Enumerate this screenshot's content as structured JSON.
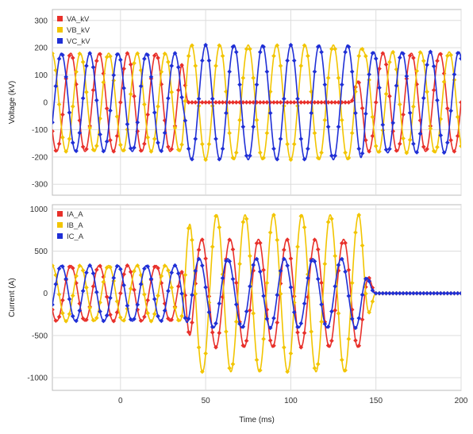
{
  "chart_data": [
    {
      "type": "line",
      "ylabel": "Voltage (kV)",
      "xlabel": "",
      "xlim": [
        -40,
        200
      ],
      "ylim": [
        -340,
        340
      ],
      "x_ticks": [
        0,
        50,
        100,
        150,
        200
      ],
      "y_ticks": [
        -300,
        -200,
        -100,
        0,
        100,
        200,
        300
      ],
      "show_x_tick_labels": false,
      "grid": true,
      "legend_position": "top-left",
      "marker_step_ms": 2,
      "series": [
        {
          "name": "VA_kV",
          "color": "#e8302a",
          "waveform": "sine",
          "frequency_hz": 60,
          "segments": [
            {
              "from": -40,
              "to": 35,
              "amplitude": 180,
              "phase_deg": 0
            },
            {
              "from": 35,
              "to": 40,
              "transition": "decay"
            },
            {
              "from": 40,
              "to": 135,
              "amplitude": 0,
              "level": 0
            },
            {
              "from": 135,
              "to": 143,
              "transition": "recovery"
            },
            {
              "from": 143,
              "to": 200,
              "amplitude": 180,
              "phase_deg": 0
            }
          ]
        },
        {
          "name": "VB_kV",
          "color": "#f2c500",
          "waveform": "sine",
          "frequency_hz": 60,
          "segments": [
            {
              "from": -40,
              "to": 35,
              "amplitude": 180,
              "phase_deg": -120
            },
            {
              "from": 35,
              "to": 40,
              "transition": "rise"
            },
            {
              "from": 40,
              "to": 140,
              "amplitude": 210,
              "phase_deg": -90
            },
            {
              "from": 140,
              "to": 145,
              "transition": "settle"
            },
            {
              "from": 145,
              "to": 200,
              "amplitude": 185,
              "phase_deg": -120
            }
          ]
        },
        {
          "name": "VC_kV",
          "color": "#1f2fd6",
          "waveform": "sine",
          "frequency_hz": 60,
          "segments": [
            {
              "from": -40,
              "to": 35,
              "amplitude": 180,
              "phase_deg": 120
            },
            {
              "from": 35,
              "to": 40,
              "transition": "rise"
            },
            {
              "from": 40,
              "to": 140,
              "amplitude": 210,
              "phase_deg": 90
            },
            {
              "from": 140,
              "to": 145,
              "transition": "settle"
            },
            {
              "from": 145,
              "to": 200,
              "amplitude": 185,
              "phase_deg": 120
            }
          ]
        }
      ]
    },
    {
      "type": "line",
      "ylabel": "Current (A)",
      "xlabel": "Time (ms)",
      "xlim": [
        -40,
        200
      ],
      "ylim": [
        -1150,
        1050
      ],
      "x_ticks": [
        0,
        50,
        100,
        150,
        200
      ],
      "y_ticks": [
        -1000,
        -500,
        0,
        500,
        1000
      ],
      "show_x_tick_labels": true,
      "grid": true,
      "legend_position": "top-left",
      "marker_step_ms": 2,
      "series": [
        {
          "name": "IA_A",
          "color": "#e8302a",
          "waveform": "sine",
          "frequency_hz": 60,
          "segments": [
            {
              "from": -40,
              "to": 35,
              "amplitude": 330,
              "phase_deg": 0
            },
            {
              "from": 35,
              "to": 42,
              "transition": "rise"
            },
            {
              "from": 42,
              "to": 140,
              "amplitude": 640,
              "phase_deg": 140
            },
            {
              "from": 140,
              "to": 150,
              "transition": "decay"
            },
            {
              "from": 150,
              "to": 200,
              "amplitude": 0,
              "level": 0
            }
          ]
        },
        {
          "name": "IB_A",
          "color": "#f2c500",
          "waveform": "sine",
          "frequency_hz": 60,
          "segments": [
            {
              "from": -40,
              "to": 35,
              "amplitude": 330,
              "phase_deg": -120
            },
            {
              "from": 35,
              "to": 42,
              "transition": "rise"
            },
            {
              "from": 42,
              "to": 140,
              "amplitude": 930,
              "phase_deg": -50
            },
            {
              "from": 140,
              "to": 150,
              "transition": "decay"
            },
            {
              "from": 150,
              "to": 200,
              "amplitude": 0,
              "level": 0
            }
          ]
        },
        {
          "name": "IC_A",
          "color": "#1f2fd6",
          "waveform": "sine",
          "frequency_hz": 60,
          "segments": [
            {
              "from": -40,
              "to": 35,
              "amplitude": 330,
              "phase_deg": 120
            },
            {
              "from": 35,
              "to": 42,
              "transition": "rise"
            },
            {
              "from": 42,
              "to": 140,
              "amplitude": 410,
              "phase_deg": 170
            },
            {
              "from": 140,
              "to": 150,
              "transition": "decay"
            },
            {
              "from": 150,
              "to": 200,
              "amplitude": 0,
              "level": 0
            }
          ]
        }
      ]
    }
  ]
}
